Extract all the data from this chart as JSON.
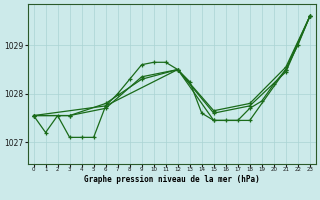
{
  "title": "Graphe pression niveau de la mer (hPa)",
  "bg_color": "#cceaea",
  "grid_color": "#aad4d4",
  "line_color": "#1a6b1a",
  "marker_color": "#1a6b1a",
  "ylabel_ticks": [
    1027,
    1028,
    1029
  ],
  "xlim": [
    -0.5,
    23.5
  ],
  "ylim": [
    1026.55,
    1029.85
  ],
  "series1_x": [
    0,
    1,
    2,
    3,
    4,
    5,
    6,
    7,
    8,
    9,
    10,
    11,
    12,
    13,
    14,
    15,
    16,
    17,
    18,
    19,
    20,
    21,
    22,
    23
  ],
  "series1_y": [
    1027.55,
    1027.2,
    1027.55,
    1027.1,
    1027.1,
    1027.1,
    1027.75,
    1028.0,
    1028.3,
    1028.6,
    1028.65,
    1028.65,
    1028.5,
    1028.25,
    1027.6,
    1027.45,
    1027.45,
    1027.45,
    1027.7,
    1027.85,
    1028.2,
    1028.5,
    1029.0,
    1029.6
  ],
  "series2_x": [
    0,
    3,
    6,
    9,
    12,
    15,
    18,
    21,
    23
  ],
  "series2_y": [
    1027.55,
    1027.55,
    1027.8,
    1028.3,
    1028.5,
    1027.65,
    1027.8,
    1028.55,
    1029.6
  ],
  "series3_x": [
    0,
    3,
    6,
    9,
    12,
    15,
    18,
    21,
    23
  ],
  "series3_y": [
    1027.55,
    1027.55,
    1027.7,
    1028.35,
    1028.5,
    1027.6,
    1027.75,
    1028.45,
    1029.6
  ],
  "series4_x": [
    0,
    6,
    12,
    15,
    18,
    21,
    23
  ],
  "series4_y": [
    1027.55,
    1027.75,
    1028.5,
    1027.45,
    1027.45,
    1028.5,
    1029.6
  ]
}
